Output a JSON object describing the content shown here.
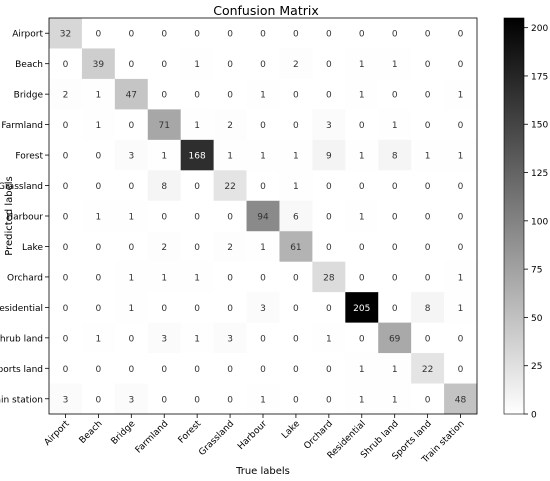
{
  "chart_data": {
    "type": "heatmap",
    "title": "Confusion Matrix",
    "xlabel": "True labels",
    "ylabel": "Predicted labels",
    "categories": [
      "Airport",
      "Beach",
      "Bridge",
      "Farmland",
      "Forest",
      "Grassland",
      "Harbour",
      "Lake",
      "Orchard",
      "Residential",
      "Shrub land",
      "Sports land",
      "Train station"
    ],
    "matrix": [
      [
        32,
        0,
        0,
        0,
        0,
        0,
        0,
        0,
        0,
        0,
        0,
        0,
        0
      ],
      [
        0,
        39,
        0,
        0,
        1,
        0,
        0,
        2,
        0,
        1,
        1,
        0,
        0
      ],
      [
        2,
        1,
        47,
        0,
        0,
        0,
        1,
        0,
        0,
        1,
        0,
        0,
        1
      ],
      [
        0,
        1,
        0,
        71,
        1,
        2,
        0,
        0,
        3,
        0,
        1,
        0,
        0
      ],
      [
        0,
        0,
        3,
        1,
        168,
        1,
        1,
        1,
        9,
        1,
        8,
        1,
        1
      ],
      [
        0,
        0,
        0,
        8,
        0,
        22,
        0,
        1,
        0,
        0,
        0,
        0,
        0
      ],
      [
        0,
        1,
        1,
        0,
        0,
        0,
        94,
        6,
        0,
        1,
        0,
        0,
        0
      ],
      [
        0,
        0,
        0,
        2,
        0,
        2,
        1,
        61,
        0,
        0,
        0,
        0,
        0
      ],
      [
        0,
        0,
        1,
        1,
        1,
        0,
        0,
        0,
        28,
        0,
        0,
        0,
        1
      ],
      [
        0,
        0,
        1,
        0,
        0,
        0,
        3,
        0,
        0,
        205,
        0,
        8,
        1
      ],
      [
        0,
        1,
        0,
        3,
        1,
        3,
        0,
        0,
        1,
        0,
        69,
        0,
        0
      ],
      [
        0,
        0,
        0,
        0,
        0,
        0,
        0,
        0,
        0,
        1,
        1,
        22,
        0
      ],
      [
        3,
        0,
        3,
        0,
        0,
        0,
        1,
        0,
        0,
        1,
        1,
        0,
        48
      ]
    ],
    "color_range": [
      0,
      205
    ],
    "colormap": "Greys",
    "colorbar_ticks": [
      0,
      25,
      50,
      75,
      100,
      125,
      150,
      175,
      200
    ]
  }
}
